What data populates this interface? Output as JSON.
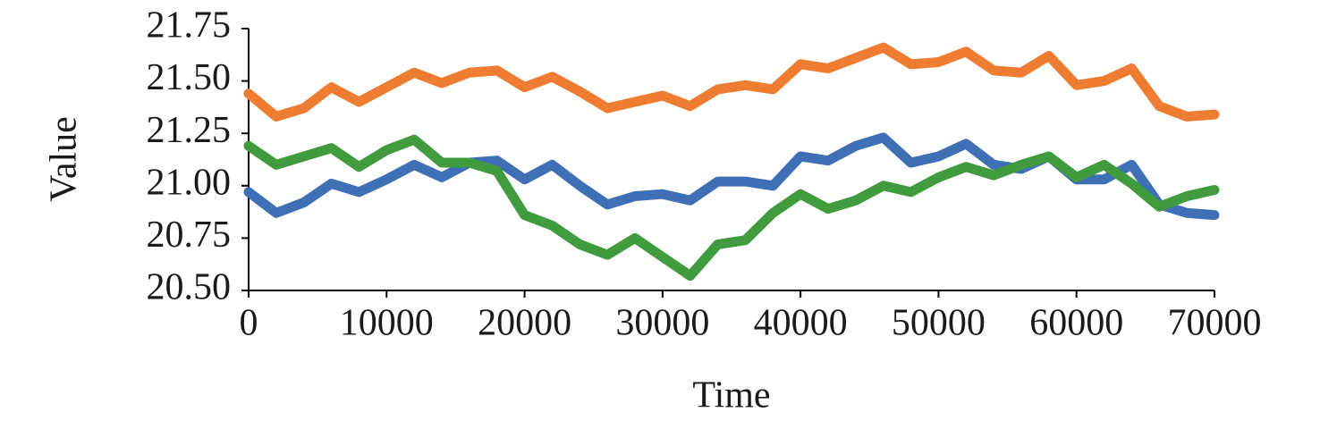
{
  "chart_data": {
    "type": "line",
    "x_label": "Time",
    "y_label": "Value",
    "x": [
      0,
      2000,
      4000,
      6000,
      8000,
      10000,
      12000,
      14000,
      16000,
      18000,
      20000,
      22000,
      24000,
      26000,
      28000,
      30000,
      32000,
      34000,
      36000,
      38000,
      40000,
      42000,
      44000,
      46000,
      48000,
      50000,
      52000,
      54000,
      56000,
      58000,
      60000,
      62000,
      64000,
      66000,
      68000,
      70000
    ],
    "series": [
      {
        "color": "#ee7d31",
        "values": [
          21.44,
          21.33,
          21.37,
          21.47,
          21.4,
          21.47,
          21.54,
          21.49,
          21.54,
          21.55,
          21.47,
          21.52,
          21.45,
          21.37,
          21.4,
          21.43,
          21.38,
          21.46,
          21.48,
          21.46,
          21.58,
          21.56,
          21.61,
          21.66,
          21.58,
          21.59,
          21.64,
          21.55,
          21.54,
          21.62,
          21.48,
          21.5,
          21.56,
          21.38,
          21.33,
          21.34
        ]
      },
      {
        "color": "#3f70b5",
        "values": [
          20.97,
          20.87,
          20.92,
          21.01,
          20.97,
          21.03,
          21.1,
          21.04,
          21.11,
          21.12,
          21.03,
          21.1,
          21.0,
          20.91,
          20.95,
          20.96,
          20.93,
          21.02,
          21.02,
          21.0,
          21.14,
          21.12,
          21.19,
          21.23,
          21.11,
          21.14,
          21.2,
          21.1,
          21.08,
          21.14,
          21.03,
          21.03,
          21.1,
          20.91,
          20.87,
          20.86
        ]
      },
      {
        "color": "#3f9b3d",
        "values": [
          21.19,
          21.1,
          21.14,
          21.18,
          21.09,
          21.17,
          21.22,
          21.11,
          21.11,
          21.07,
          20.86,
          20.81,
          20.72,
          20.67,
          20.75,
          20.66,
          20.57,
          20.72,
          20.74,
          20.87,
          20.96,
          20.89,
          20.93,
          21.0,
          20.97,
          21.04,
          21.09,
          21.05,
          21.1,
          21.14,
          21.04,
          21.1,
          21.01,
          20.9,
          20.95,
          20.98
        ]
      }
    ],
    "xlim": [
      0,
      70000
    ],
    "xticks": [
      0,
      10000,
      20000,
      30000,
      40000,
      50000,
      60000,
      70000
    ],
    "ylim": [
      20.5,
      21.75
    ],
    "yticks": [
      {
        "value": 20.5,
        "label": "20.50"
      },
      {
        "value": 20.75,
        "label": "20.75"
      },
      {
        "value": 21,
        "label": "21.00"
      },
      {
        "value": 21.25,
        "label": "21.25"
      },
      {
        "value": 21.5,
        "label": "21.50"
      },
      {
        "value": 21.75,
        "label": "21.75"
      }
    ],
    "grid": false
  }
}
